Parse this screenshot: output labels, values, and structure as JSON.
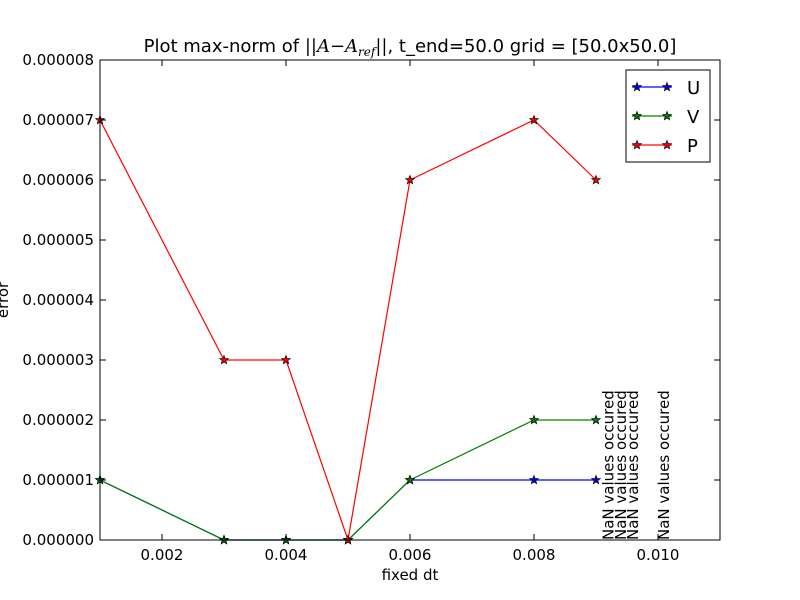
{
  "chart_data": {
    "type": "line",
    "title_prefix": "Plot max-norm of ",
    "title_math_base": "||A−A",
    "title_math_sub": "ref",
    "title_math_close": "||",
    "title_suffix": ", t_end=50.0  grid = [50.0x50.0]",
    "xlabel": "fixed dt",
    "ylabel": "error",
    "xlim": [
      0.001,
      0.011
    ],
    "ylim": [
      0.0,
      8e-06
    ],
    "xticks": [
      0.002,
      0.004,
      0.006,
      0.008,
      0.01
    ],
    "xtick_labels": [
      "0.002",
      "0.004",
      "0.006",
      "0.008",
      "0.010"
    ],
    "yticks": [
      0.0,
      1e-06,
      2e-06,
      3e-06,
      4e-06,
      5e-06,
      6e-06,
      7e-06,
      8e-06
    ],
    "ytick_labels": [
      "0.000000",
      "0.000001",
      "0.000002",
      "0.000003",
      "0.000004",
      "0.000005",
      "0.000006",
      "0.000007",
      "0.000008"
    ],
    "grid": false,
    "legend_position": "top-right",
    "series": [
      {
        "name": "U",
        "color": "#0000ff",
        "marker": "star",
        "x": [
          0.001,
          0.003,
          0.004,
          0.005,
          0.006,
          0.008,
          0.009
        ],
        "y": [
          1e-06,
          0.0,
          0.0,
          0.0,
          1e-06,
          1e-06,
          1e-06
        ]
      },
      {
        "name": "V",
        "color": "#008000",
        "marker": "star",
        "x": [
          0.001,
          0.003,
          0.004,
          0.005,
          0.006,
          0.008,
          0.009
        ],
        "y": [
          1e-06,
          0.0,
          0.0,
          0.0,
          1e-06,
          2e-06,
          2e-06
        ]
      },
      {
        "name": "P",
        "color": "#ff0000",
        "marker": "star",
        "x": [
          0.001,
          0.003,
          0.004,
          0.005,
          0.006,
          0.008,
          0.009
        ],
        "y": [
          7e-06,
          3e-06,
          3e-06,
          0.0,
          6e-06,
          7e-06,
          6e-06
        ]
      }
    ],
    "annotations": [
      {
        "text": "NaN values occured",
        "x": 0.0092
      },
      {
        "text": "NaN values occured",
        "x": 0.0094
      },
      {
        "text": "NaN values occured",
        "x": 0.0096
      },
      {
        "text": "NaN values occured",
        "x": 0.0101
      }
    ]
  }
}
